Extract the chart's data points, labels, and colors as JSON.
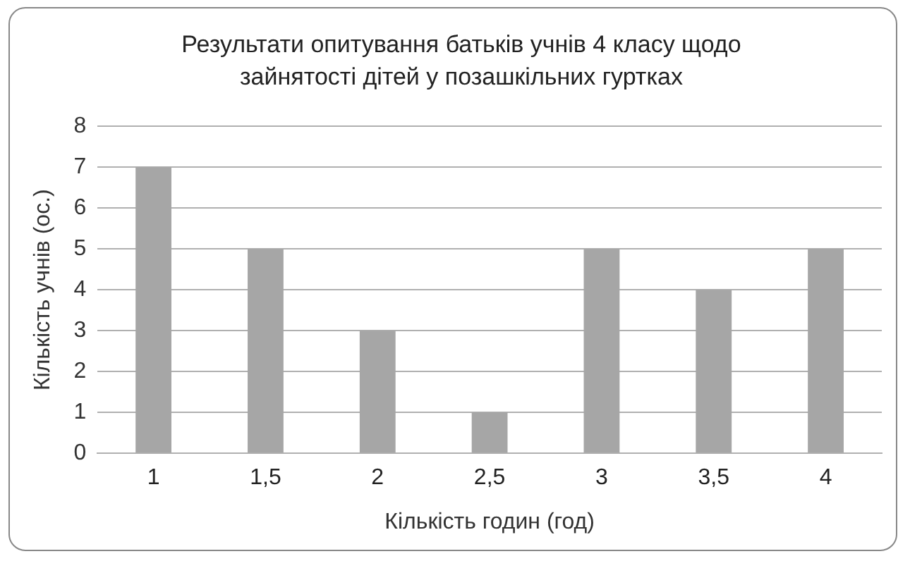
{
  "chart_data": {
    "type": "bar",
    "title": "Результати опитування батьків учнів 4 класу щодо зайнятості дітей у позашкільних гуртках",
    "xlabel": "Кількість годин (год)",
    "ylabel": "Кількість учнів (ос.)",
    "categories": [
      "1",
      "1,5",
      "2",
      "2,5",
      "3",
      "3,5",
      "4"
    ],
    "values": [
      7,
      5,
      3,
      1,
      5,
      4,
      5
    ],
    "color": "#a6a6a6",
    "ylim": [
      0,
      8
    ],
    "yticks": [
      0,
      1,
      2,
      3,
      4,
      5,
      6,
      7,
      8
    ],
    "grid": "y",
    "legend": false
  }
}
